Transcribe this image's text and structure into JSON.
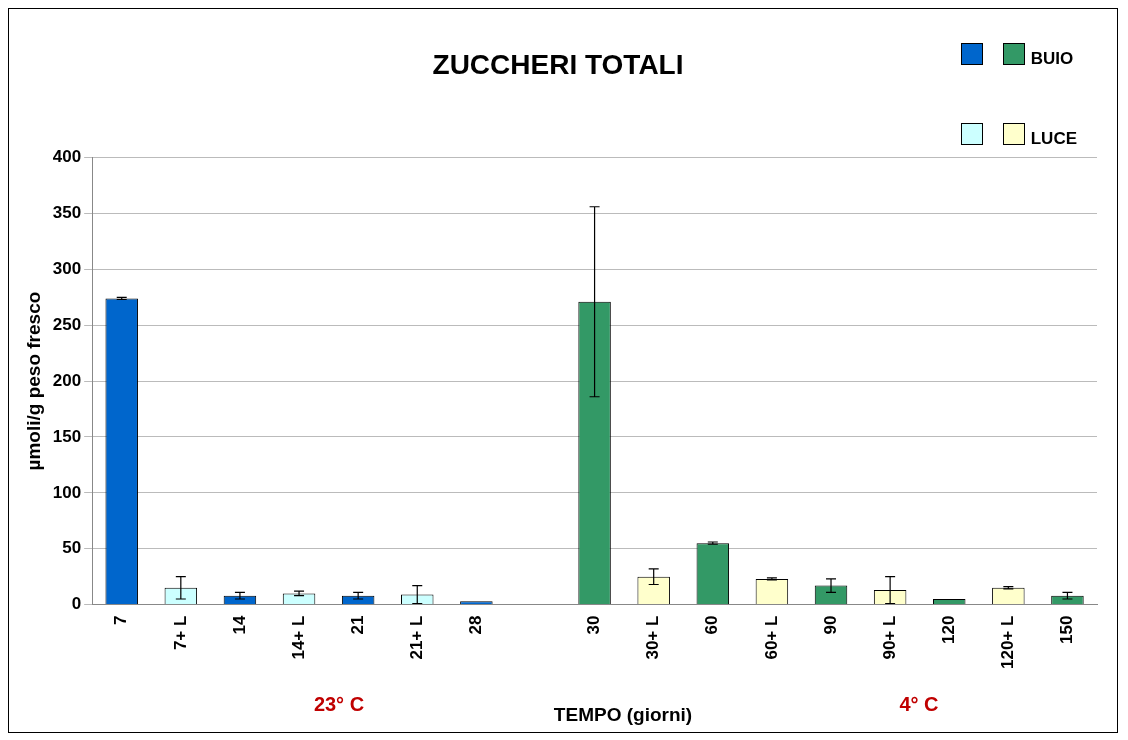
{
  "chart_data": {
    "type": "bar",
    "title": "ZUCCHERI TOTALI",
    "xlabel": "TEMPO (giorni)",
    "ylabel": "µmoli/g peso fresco",
    "categories": [
      "7",
      "7+ L",
      "14",
      "14+ L",
      "21",
      "21+ L",
      "28",
      null,
      "30",
      "30+ L",
      "60",
      "60+ L",
      "90",
      "90+ L",
      "120",
      "120+ L",
      "150"
    ],
    "series": [
      {
        "name": "BUIO",
        "colors": [
          "#0066cc",
          null,
          "#0066cc",
          null,
          "#0066cc",
          null,
          "#0066cc",
          null,
          "#339966",
          null,
          "#339966",
          null,
          "#339966",
          null,
          "#339966",
          null,
          "#339966"
        ],
        "values": [
          274,
          null,
          8,
          null,
          8,
          null,
          3,
          null,
          271,
          null,
          55,
          null,
          17,
          null,
          5,
          null,
          8
        ],
        "errors": [
          1,
          null,
          3,
          null,
          3,
          null,
          null,
          null,
          85,
          null,
          1,
          null,
          6,
          null,
          null,
          null,
          3
        ]
      },
      {
        "name": "LUCE",
        "colors": [
          null,
          "#ccffff",
          null,
          "#ccffff",
          null,
          "#ccffff",
          null,
          null,
          null,
          "#ffffcc",
          null,
          "#ffffcc",
          null,
          "#ffffcc",
          null,
          "#ffffcc",
          null
        ],
        "values": [
          null,
          15,
          null,
          10,
          null,
          9,
          null,
          null,
          null,
          25,
          null,
          23,
          null,
          13,
          null,
          15,
          null
        ],
        "errors": [
          null,
          10,
          null,
          2,
          null,
          8,
          null,
          null,
          null,
          7,
          null,
          1,
          null,
          12,
          null,
          1,
          null
        ]
      }
    ],
    "ylim": [
      0,
      400
    ],
    "yticks": [
      0,
      50,
      100,
      150,
      200,
      250,
      300,
      350,
      400
    ],
    "grid": "y",
    "legend": "top right",
    "annotations": [
      "23° C",
      "4° C"
    ]
  }
}
